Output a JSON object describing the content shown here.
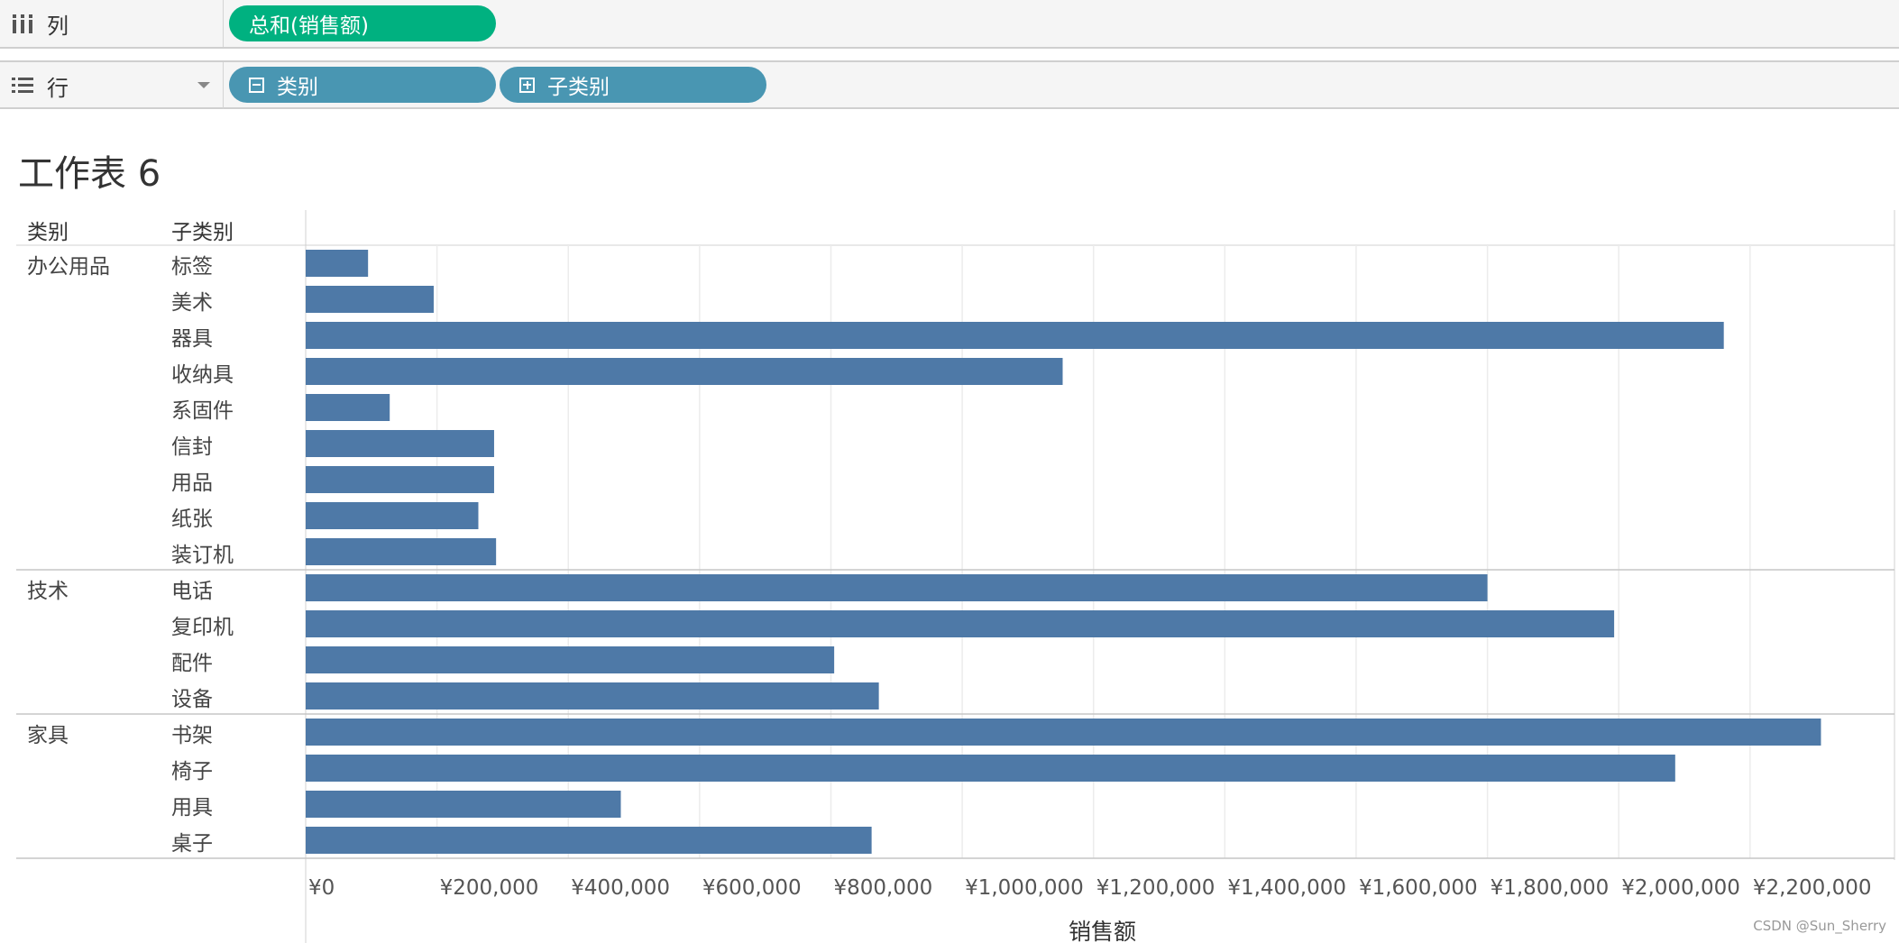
{
  "shelves": {
    "columns": {
      "label": "列",
      "icon": "columns-icon",
      "pills": [
        {
          "label": "总和(销售额)",
          "color": "#00b180"
        }
      ]
    },
    "rows": {
      "label": "行",
      "icon": "rows-list-icon",
      "pills": [
        {
          "label": "类别",
          "color": "#4996b2",
          "icon": "collapse-minus-icon"
        },
        {
          "label": "子类别",
          "color": "#4996b2",
          "icon": "expand-plus-icon"
        }
      ]
    }
  },
  "sheet": {
    "title": "工作表 6"
  },
  "table_headers": {
    "category": "类别",
    "subcategory": "子类别"
  },
  "chart_data": {
    "type": "bar",
    "orientation": "horizontal",
    "bar_color": "#4e79a7",
    "xlabel": "销售额",
    "xlim": [
      0,
      2420000
    ],
    "x_ticks": [
      0,
      200000,
      400000,
      600000,
      800000,
      1000000,
      1200000,
      1400000,
      1600000,
      1800000,
      2000000,
      2200000
    ],
    "x_tick_labels": [
      "¥0",
      "¥200,000",
      "¥400,000",
      "¥600,000",
      "¥800,000",
      "¥1,000,000",
      "¥1,200,000",
      "¥1,400,000",
      "¥1,600,000",
      "¥1,800,000",
      "¥2,000,000",
      "¥2,200,000"
    ],
    "grid": true,
    "groups": [
      {
        "category": "办公用品",
        "subcategories": [
          "标签",
          "美术",
          "器具",
          "收纳具",
          "系固件",
          "信封",
          "用品",
          "纸张",
          "装订机"
        ],
        "values": [
          95000,
          195000,
          2160000,
          1153000,
          128000,
          287000,
          287000,
          263000,
          290000
        ]
      },
      {
        "category": "技术",
        "subcategories": [
          "电话",
          "复印机",
          "配件",
          "设备"
        ],
        "values": [
          1800000,
          1993000,
          805000,
          873000
        ]
      },
      {
        "category": "家具",
        "subcategories": [
          "书架",
          "椅子",
          "用具",
          "桌子"
        ],
        "values": [
          2308000,
          2086000,
          480000,
          862000
        ]
      }
    ]
  },
  "watermark": "CSDN @Sun_Sherry"
}
